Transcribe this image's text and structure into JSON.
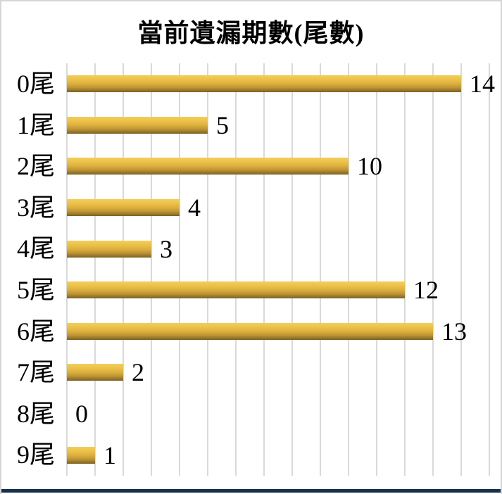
{
  "chart_data": {
    "type": "bar",
    "orientation": "horizontal",
    "title": "當前遺漏期數(尾數)",
    "categories": [
      "0尾",
      "1尾",
      "2尾",
      "3尾",
      "4尾",
      "5尾",
      "6尾",
      "7尾",
      "8尾",
      "9尾"
    ],
    "values": [
      14,
      5,
      10,
      4,
      3,
      12,
      13,
      2,
      0,
      1
    ],
    "xlim": [
      0,
      15
    ],
    "grid": "vertical-major-only",
    "gridline_step": 1,
    "legend": "none",
    "data_labels": "outside-end"
  },
  "colors": {
    "bar_top": "#F2CD5C",
    "bar_mid": "#E9BE46",
    "bar_bottom": "#7B611F",
    "gridline": "#D9D9D9",
    "border": "#D6D6D6",
    "bottom_divider": "#17304E",
    "text": "#000000",
    "background": "#FFFFFF"
  }
}
